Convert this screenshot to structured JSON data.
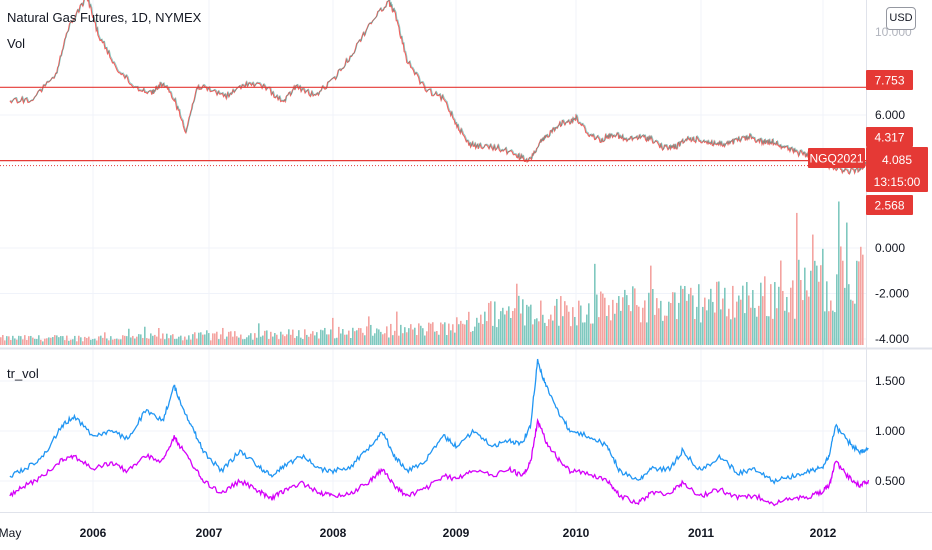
{
  "header": {
    "symbol_title": "Natural Gas Futures, 1D, NYMEX",
    "volume_label": "Vol",
    "currency_button": "USD",
    "top_axis_partial": "10.000"
  },
  "lower_pane": {
    "label": "tr_vol"
  },
  "colors": {
    "price_up": "#26a69a",
    "price_down": "#ef5350",
    "level_line": "#e53935",
    "tr_vol_upper": "#2196f3",
    "tr_vol_lower": "#d500f9",
    "vol_up": "#7fc8bf",
    "vol_down": "#f4a3a0"
  },
  "chart_data": [
    {
      "type": "line",
      "title": "Natural Gas Futures, 1D, NYMEX",
      "price_axis_ticks": [
        6.0,
        0.0,
        -2.0,
        -4.0
      ],
      "price_axis_tick_labels": [
        "6.000",
        "0.000",
        "-2.000",
        "-4.000"
      ],
      "horizontal_levels": [
        {
          "value": 7.753,
          "label": "7.753"
        },
        {
          "value": 4.317,
          "label": "4.317"
        }
      ],
      "price_markers": [
        {
          "label": "4.317"
        },
        {
          "label": "NGQ2021"
        },
        {
          "label": "4.085"
        },
        {
          "label": "13:15:00"
        },
        {
          "label": "2.568"
        }
      ],
      "series": [
        {
          "x": [
            2005.33,
            2005.5,
            2005.7,
            2005.8,
            2005.95,
            2006.05,
            2006.2,
            2006.35,
            2006.5,
            2006.6,
            2006.7,
            2006.8,
            2006.9,
            2007.0,
            2007.15,
            2007.3,
            2007.45,
            2007.6,
            2007.7,
            2007.85,
            2008.0,
            2008.15,
            2008.3,
            2008.45,
            2008.5,
            2008.6,
            2008.75,
            2008.9,
            2009.0,
            2009.1,
            2009.2,
            2009.35,
            2009.5,
            2009.6,
            2009.7,
            2009.75,
            2009.85,
            2009.95,
            2010.0,
            2010.1,
            2010.2,
            2010.3,
            2010.4,
            2010.5,
            2010.6,
            2010.7,
            2010.8,
            2010.9,
            2011.0,
            2011.1,
            2011.2,
            2011.3,
            2011.4,
            2011.5,
            2011.6,
            2011.7,
            2011.8,
            2011.9,
            2012.0,
            2012.1,
            2012.2,
            2012.3,
            2012.35
          ],
          "values": [
            6.9,
            7.0,
            8.5,
            11.5,
            13.5,
            11.0,
            9.0,
            7.8,
            7.4,
            8.0,
            7.0,
            5.0,
            7.8,
            7.6,
            7.2,
            8.0,
            7.8,
            6.8,
            7.8,
            7.2,
            8.2,
            9.8,
            11.8,
            13.2,
            12.5,
            9.5,
            7.6,
            7.0,
            5.5,
            4.2,
            4.0,
            3.9,
            3.5,
            3.0,
            4.2,
            4.6,
            5.4,
            5.6,
            5.8,
            4.8,
            4.4,
            4.8,
            4.4,
            4.6,
            4.5,
            3.9,
            4.0,
            4.5,
            4.4,
            4.2,
            4.1,
            4.4,
            4.6,
            4.3,
            4.3,
            3.9,
            3.6,
            3.4,
            2.9,
            2.7,
            2.4,
            2.6,
            2.9
          ]
        }
      ]
    },
    {
      "type": "line",
      "title": "tr_vol",
      "x_tick_labels": [
        "May",
        "2006",
        "2007",
        "2008",
        "2009",
        "2010",
        "2011",
        "2012"
      ],
      "y_axis_tick_labels": [
        "1.500",
        "1.000",
        "0.500"
      ],
      "ylim": [
        0.18,
        1.8
      ],
      "series": [
        {
          "x": [
            2005.33,
            2005.45,
            2005.6,
            2005.75,
            2005.85,
            2006.0,
            2006.15,
            2006.3,
            2006.45,
            2006.6,
            2006.7,
            2006.75,
            2006.85,
            2006.95,
            2007.1,
            2007.25,
            2007.4,
            2007.5,
            2007.6,
            2007.75,
            2007.9,
            2008.0,
            2008.15,
            2008.3,
            2008.4,
            2008.5,
            2008.6,
            2008.75,
            2008.9,
            2009.0,
            2009.15,
            2009.3,
            2009.45,
            2009.55,
            2009.62,
            2009.68,
            2009.75,
            2009.85,
            2009.95,
            2010.1,
            2010.25,
            2010.35,
            2010.5,
            2010.6,
            2010.75,
            2010.85,
            2011.0,
            2011.15,
            2011.3,
            2011.45,
            2011.6,
            2011.75,
            2011.9,
            2012.0,
            2012.05,
            2012.1,
            2012.2,
            2012.3,
            2012.37
          ],
          "values": [
            0.55,
            0.62,
            0.75,
            1.05,
            1.15,
            0.95,
            1.0,
            0.92,
            1.2,
            1.1,
            1.45,
            1.3,
            1.05,
            0.8,
            0.6,
            0.8,
            0.65,
            0.55,
            0.65,
            0.75,
            0.62,
            0.6,
            0.65,
            0.85,
            1.0,
            0.75,
            0.6,
            0.7,
            0.95,
            0.85,
            1.0,
            0.85,
            0.9,
            0.88,
            1.05,
            1.7,
            1.45,
            1.2,
            1.0,
            0.95,
            0.85,
            0.6,
            0.5,
            0.62,
            0.62,
            0.8,
            0.6,
            0.75,
            0.58,
            0.62,
            0.5,
            0.55,
            0.6,
            0.65,
            0.75,
            1.05,
            0.9,
            0.78,
            0.82
          ]
        },
        {
          "x": [
            2005.33,
            2005.45,
            2005.6,
            2005.75,
            2005.85,
            2006.0,
            2006.15,
            2006.3,
            2006.45,
            2006.6,
            2006.7,
            2006.75,
            2006.85,
            2006.95,
            2007.1,
            2007.25,
            2007.4,
            2007.5,
            2007.6,
            2007.75,
            2007.9,
            2008.0,
            2008.15,
            2008.3,
            2008.4,
            2008.5,
            2008.6,
            2008.75,
            2008.9,
            2009.0,
            2009.15,
            2009.3,
            2009.45,
            2009.55,
            2009.62,
            2009.68,
            2009.75,
            2009.85,
            2009.95,
            2010.1,
            2010.25,
            2010.35,
            2010.5,
            2010.6,
            2010.75,
            2010.85,
            2011.0,
            2011.15,
            2011.3,
            2011.45,
            2011.6,
            2011.75,
            2011.9,
            2012.0,
            2012.05,
            2012.1,
            2012.2,
            2012.3,
            2012.37
          ],
          "values": [
            0.35,
            0.45,
            0.55,
            0.72,
            0.75,
            0.62,
            0.68,
            0.6,
            0.75,
            0.7,
            0.95,
            0.85,
            0.68,
            0.5,
            0.38,
            0.5,
            0.4,
            0.32,
            0.4,
            0.48,
            0.38,
            0.35,
            0.38,
            0.5,
            0.62,
            0.45,
            0.35,
            0.42,
            0.55,
            0.52,
            0.62,
            0.55,
            0.62,
            0.55,
            0.68,
            1.1,
            0.9,
            0.72,
            0.6,
            0.58,
            0.5,
            0.35,
            0.28,
            0.38,
            0.38,
            0.48,
            0.35,
            0.42,
            0.33,
            0.35,
            0.28,
            0.32,
            0.35,
            0.4,
            0.45,
            0.7,
            0.55,
            0.45,
            0.5
          ]
        }
      ]
    }
  ]
}
